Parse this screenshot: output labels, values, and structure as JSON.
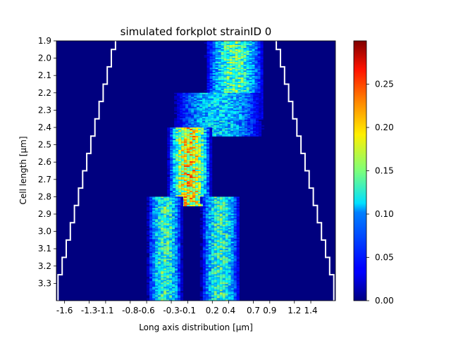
{
  "chart_data": {
    "type": "heatmap",
    "title": "simulated forkplot strainID 0",
    "xlabel": "Long axis distribution [μm]",
    "ylabel": "Cell length [μm]",
    "x_ticks": [
      "-1.6",
      "-1.3",
      "-1.1",
      "-0.8",
      "-0.6",
      "-0.3",
      "-0.1",
      "0.2",
      "0.4",
      "0.7",
      "0.9",
      "1.2",
      "1.4"
    ],
    "y_ticks": [
      "1.9",
      "2.0",
      "2.1",
      "2.2",
      "2.3",
      "2.4",
      "2.5",
      "2.6",
      "2.7",
      "2.8",
      "2.9",
      "3.0",
      "3.1",
      "3.2",
      "3.3"
    ],
    "x_range": [
      -1.7,
      1.7
    ],
    "y_range": [
      1.9,
      3.4
    ],
    "colorbar": {
      "colormap": "jet",
      "min": 0.0,
      "max": 0.3,
      "ticks": [
        "0.00",
        "0.05",
        "0.10",
        "0.15",
        "0.20",
        "0.25"
      ]
    },
    "density_bands": [
      {
        "y_from": 1.9,
        "y_to": 2.35,
        "x_from": 0.1,
        "x_to": 0.85,
        "peak": 0.16
      },
      {
        "y_from": 2.2,
        "y_to": 2.45,
        "x_from": -0.3,
        "x_to": 0.85,
        "peak": 0.12
      },
      {
        "y_from": 2.4,
        "y_to": 2.85,
        "x_from": -0.35,
        "x_to": 0.2,
        "peak": 0.22
      },
      {
        "y_from": 2.8,
        "y_to": 3.4,
        "x_from": -0.6,
        "x_to": -0.15,
        "peak": 0.15
      },
      {
        "y_from": 2.8,
        "y_to": 3.4,
        "x_from": 0.05,
        "x_to": 0.55,
        "peak": 0.15
      }
    ],
    "cell_outline": [
      {
        "y": 1.9,
        "half_length": 0.98
      },
      {
        "y": 2.0,
        "half_length": 1.03
      },
      {
        "y": 2.1,
        "half_length": 1.08
      },
      {
        "y": 2.2,
        "half_length": 1.13
      },
      {
        "y": 2.3,
        "half_length": 1.18
      },
      {
        "y": 2.4,
        "half_length": 1.23
      },
      {
        "y": 2.5,
        "half_length": 1.28
      },
      {
        "y": 2.6,
        "half_length": 1.33
      },
      {
        "y": 2.7,
        "half_length": 1.38
      },
      {
        "y": 2.8,
        "half_length": 1.43
      },
      {
        "y": 2.9,
        "half_length": 1.48
      },
      {
        "y": 3.0,
        "half_length": 1.53
      },
      {
        "y": 3.1,
        "half_length": 1.58
      },
      {
        "y": 3.2,
        "half_length": 1.63
      },
      {
        "y": 3.3,
        "half_length": 1.68
      }
    ],
    "grid": false,
    "legend": "none"
  }
}
